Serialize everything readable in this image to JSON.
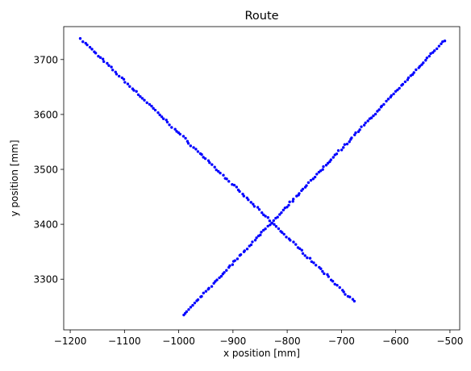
{
  "chart_data": {
    "type": "scatter",
    "title": "Route",
    "xlabel": "x position [mm]",
    "ylabel": "y position [mm]",
    "xlim": [
      -1212,
      -482
    ],
    "ylim": [
      3207.8,
      3759.9
    ],
    "xticks": [
      -1200,
      -1100,
      -1000,
      -900,
      -800,
      -700,
      -600,
      -500
    ],
    "yticks": [
      3300,
      3400,
      3500,
      3600,
      3700
    ],
    "grid": false,
    "marker_color": "#0000ff",
    "series": [
      {
        "segments": [
          {
            "start": [
              -1180,
              3737
            ],
            "end": [
              -676,
              3259
            ],
            "count": 130
          },
          {
            "start": [
              -992,
              3234
            ],
            "end": [
              -510,
              3735
            ],
            "count": 140
          }
        ]
      }
    ]
  }
}
